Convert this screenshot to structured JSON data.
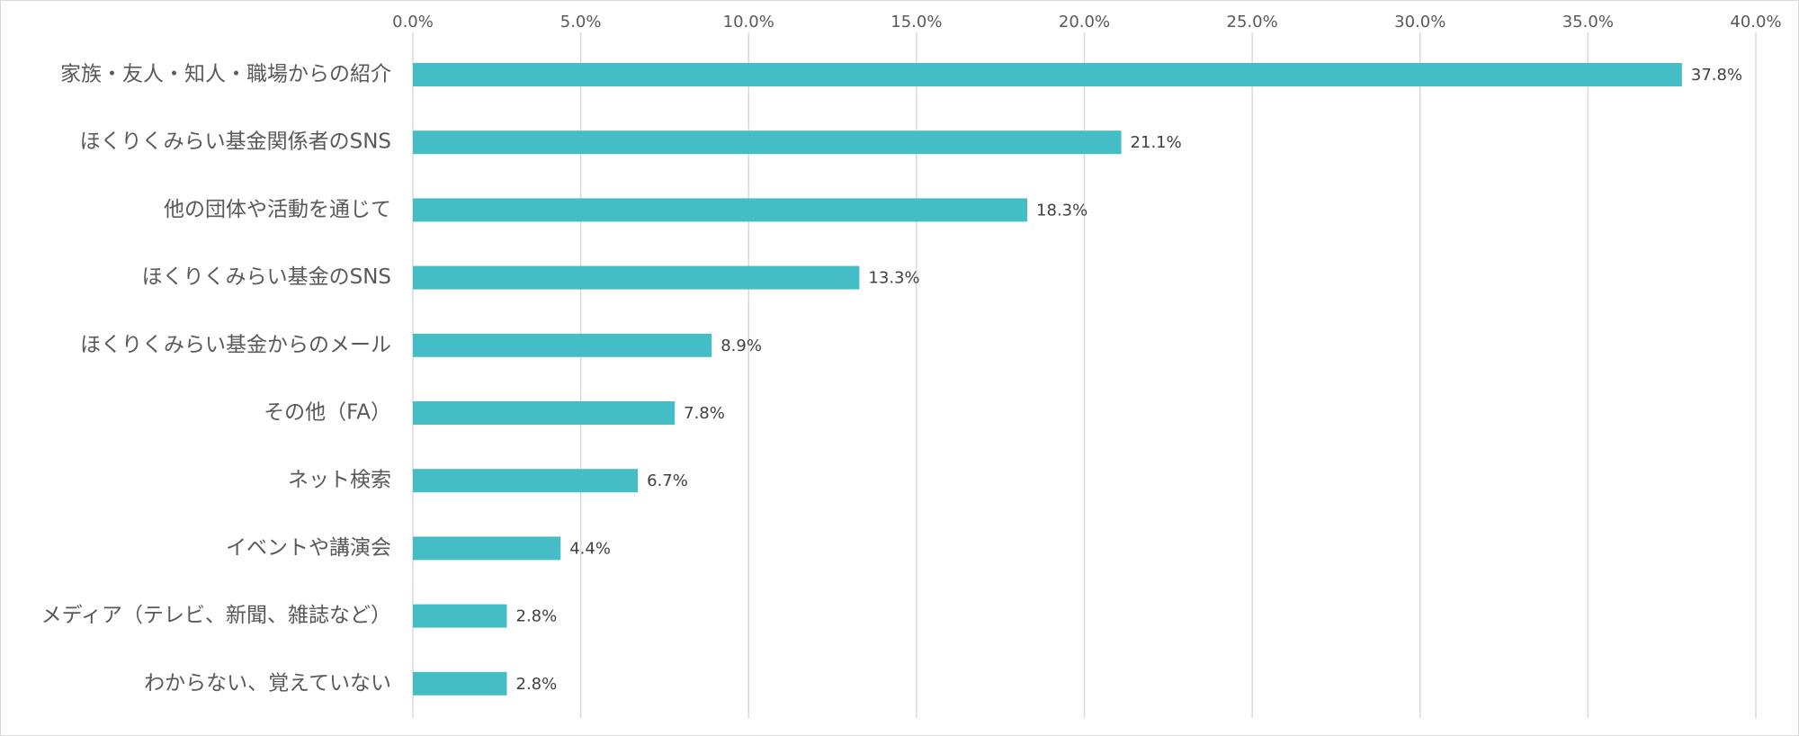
{
  "chart_data": {
    "type": "bar",
    "orientation": "horizontal",
    "title": "",
    "xlabel": "",
    "ylabel": "",
    "xlim": [
      0,
      40
    ],
    "x_ticks": [
      "0.0%",
      "5.0%",
      "10.0%",
      "15.0%",
      "20.0%",
      "25.0%",
      "30.0%",
      "35.0%",
      "40.0%"
    ],
    "x_tick_values": [
      0,
      5,
      10,
      15,
      20,
      25,
      30,
      35,
      40
    ],
    "x_axis_position": "top",
    "grid": true,
    "legend": "none",
    "categories": [
      "家族・友人・知人・職場からの紹介",
      "ほくりくみらい基金関係者のSNS",
      "他の団体や活動を通じて",
      "ほくりくみらい基金のSNS",
      "ほくりくみらい基金からのメール",
      "その他（FA）",
      "ネット検索",
      "イベントや講演会",
      "メディア（テレビ、新聞、雑誌など）",
      "わからない、覚えていない"
    ],
    "values": [
      37.8,
      21.1,
      18.3,
      13.3,
      8.9,
      7.8,
      6.7,
      4.4,
      2.8,
      2.8
    ],
    "data_labels": [
      "37.8%",
      "21.1%",
      "18.3%",
      "13.3%",
      "8.9%",
      "7.8%",
      "6.7%",
      "4.4%",
      "2.8%",
      "2.8%"
    ],
    "bar_color": "#45BDC7",
    "grid_color": "#D9D9D9",
    "label_color": "#595959",
    "data_label_color": "#404040"
  }
}
